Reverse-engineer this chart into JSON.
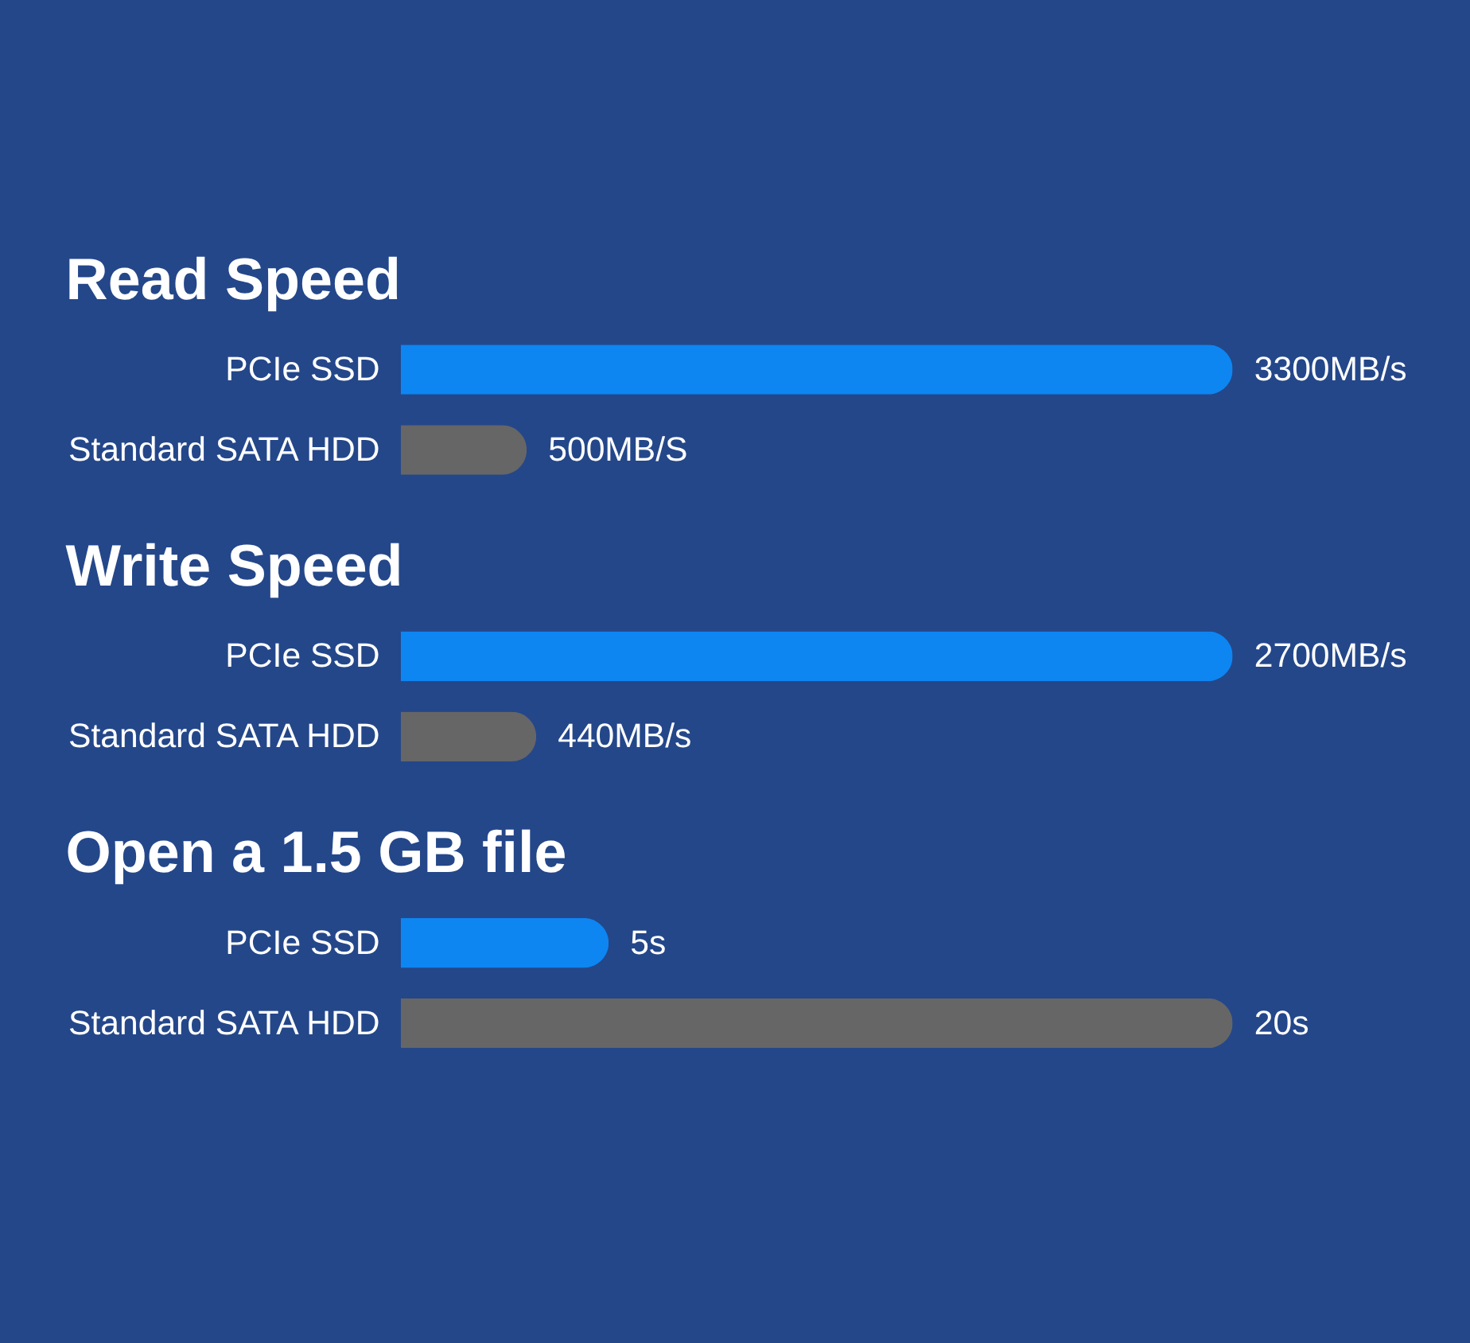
{
  "chart_data": [
    {
      "type": "bar",
      "orientation": "horizontal",
      "title": "Read Speed",
      "categories": [
        "PCIe SSD",
        "Standard SATA HDD"
      ],
      "values": [
        3300,
        500
      ],
      "colors": [
        "#0d86f2",
        "#666666"
      ],
      "value_labels": [
        "3300MB/s",
        "500MB/S"
      ],
      "tick_labels": "y"
    },
    {
      "type": "bar",
      "orientation": "horizontal",
      "title": "Write Speed",
      "categories": [
        "PCIe SSD",
        "Standard SATA HDD"
      ],
      "values": [
        2700,
        440
      ],
      "colors": [
        "#0d86f2",
        "#666666"
      ],
      "value_labels": [
        "2700MB/s",
        "440MB/s"
      ],
      "tick_labels": "y"
    },
    {
      "type": "bar",
      "orientation": "horizontal",
      "title": "Open a 1.5 GB file",
      "categories": [
        "PCIe SSD",
        "Standard SATA HDD"
      ],
      "values": [
        5,
        20
      ],
      "colors": [
        "#0d86f2",
        "#666666"
      ],
      "value_labels": [
        "5s",
        "20s"
      ],
      "tick_labels": "y"
    }
  ]
}
